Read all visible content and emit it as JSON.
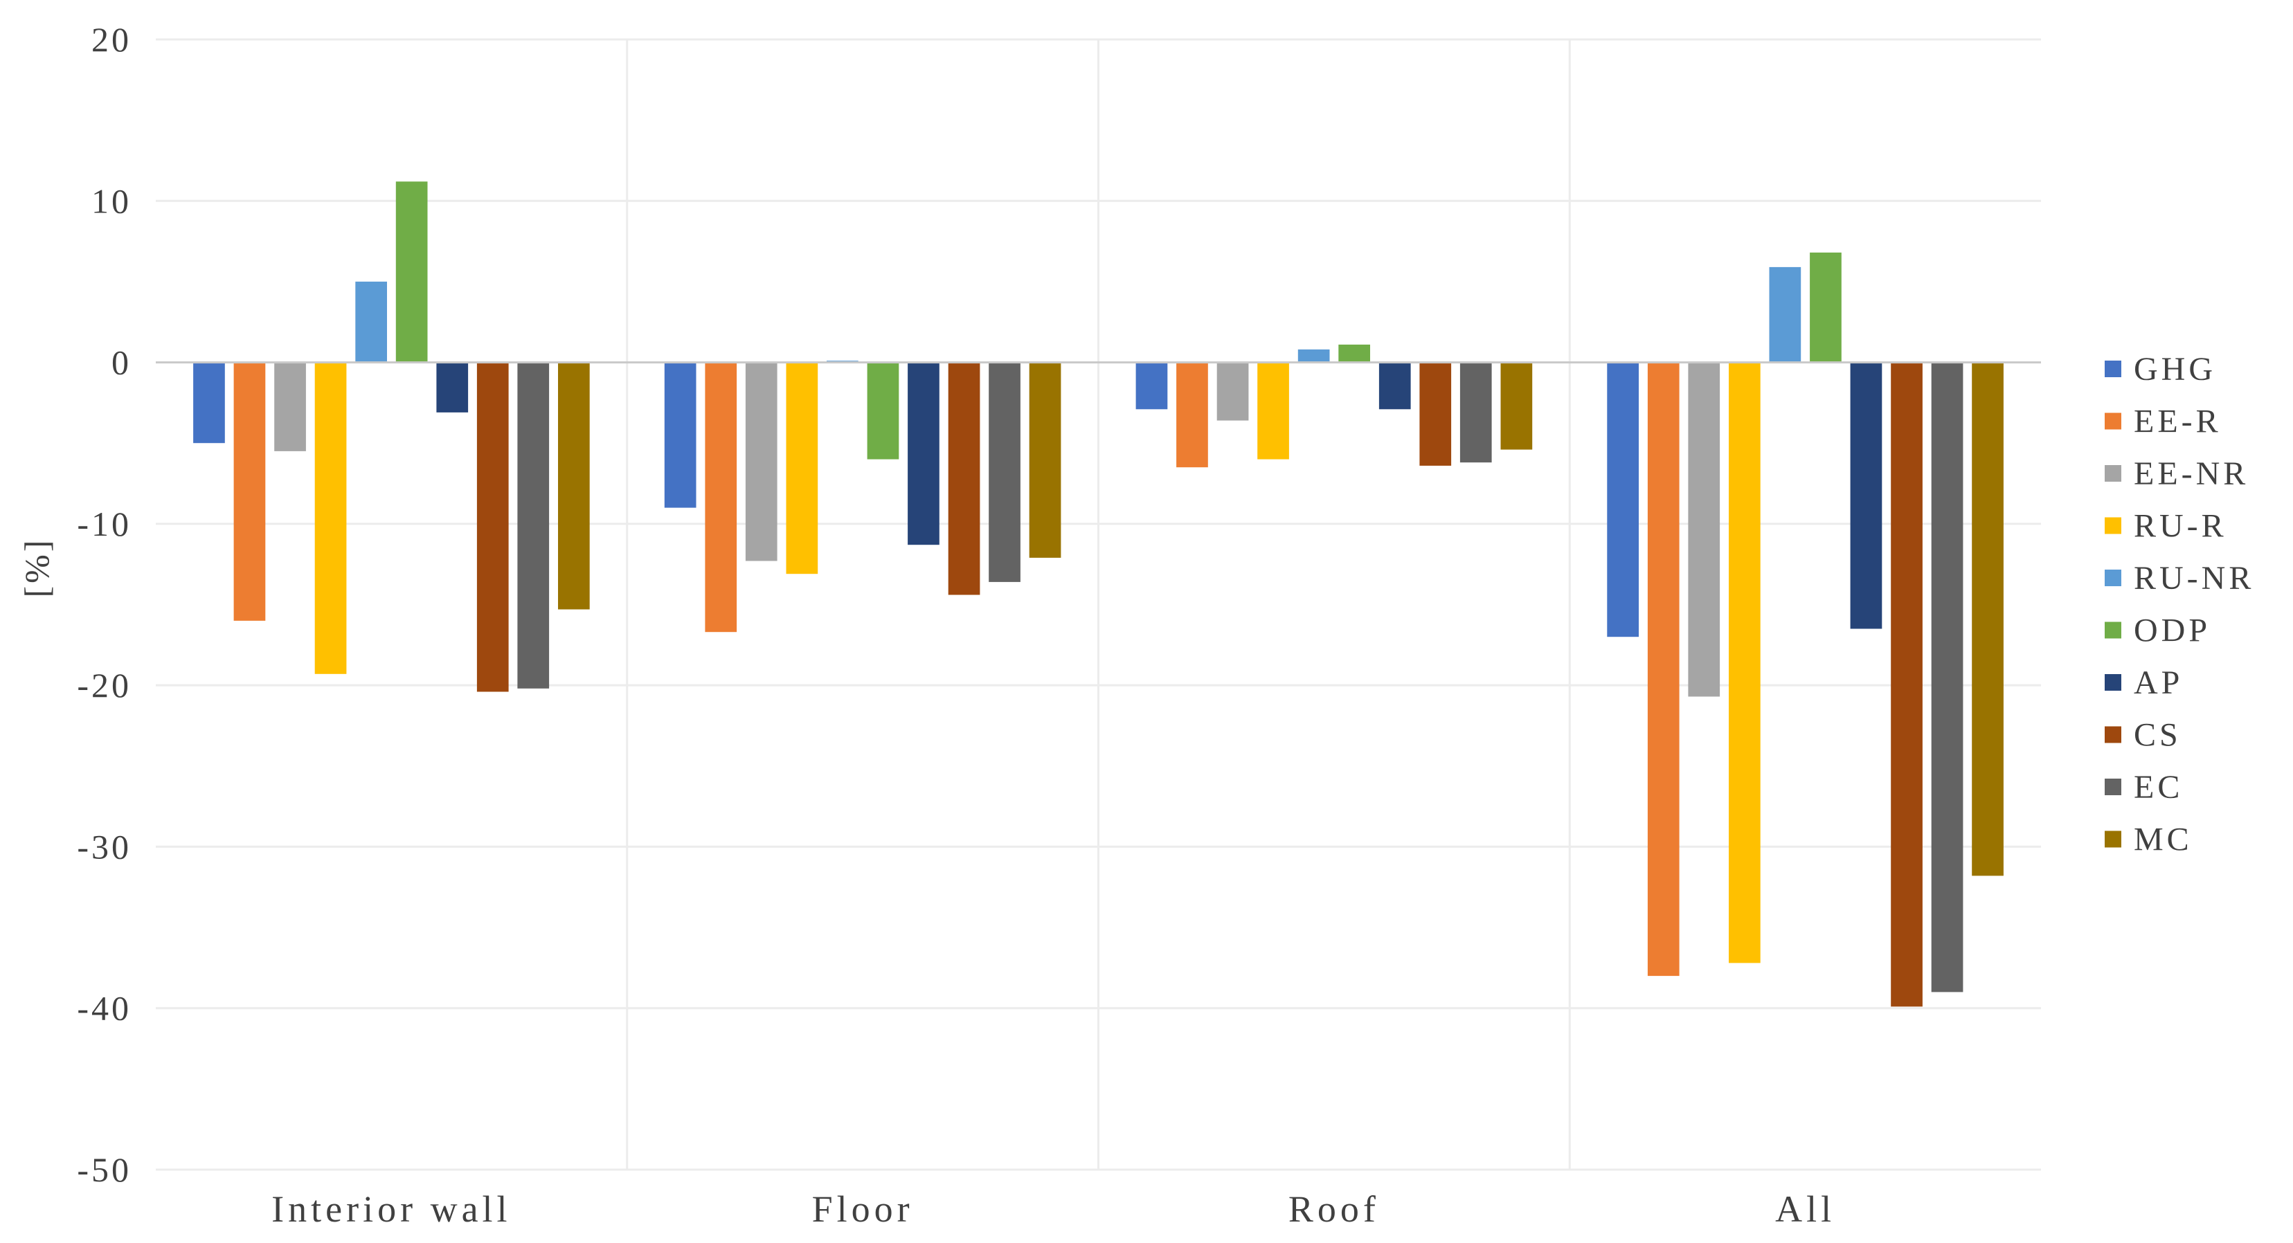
{
  "chart_data": {
    "type": "bar",
    "categories": [
      "Interior wall",
      "Floor",
      "Roof",
      "All"
    ],
    "ylabel": "[%]",
    "ylim": [
      -50,
      20
    ],
    "yticks": [
      20,
      10,
      0,
      -10,
      -20,
      -30,
      -40,
      -50
    ],
    "grid": true,
    "legend_position": "right",
    "series": [
      {
        "name": "GHG",
        "color": "#4472C4",
        "values": [
          -5.0,
          -9.0,
          -2.9,
          -17.0
        ]
      },
      {
        "name": "EE-R",
        "color": "#ED7D31",
        "values": [
          -16.0,
          -16.7,
          -6.5,
          -38.0
        ]
      },
      {
        "name": "EE-NR",
        "color": "#A5A5A5",
        "values": [
          -5.5,
          -12.3,
          -3.6,
          -20.7
        ]
      },
      {
        "name": "RU-R",
        "color": "#FFC000",
        "values": [
          -19.3,
          -13.1,
          -6.0,
          -37.2
        ]
      },
      {
        "name": "RU-NR",
        "color": "#5B9BD5",
        "values": [
          5.0,
          0.1,
          0.8,
          5.9
        ]
      },
      {
        "name": "ODP",
        "color": "#70AD47",
        "values": [
          11.2,
          -6.0,
          1.1,
          6.8
        ]
      },
      {
        "name": "AP",
        "color": "#264478",
        "values": [
          -3.1,
          -11.3,
          -2.9,
          -16.5
        ]
      },
      {
        "name": "CS",
        "color": "#9E480E",
        "values": [
          -20.4,
          -14.4,
          -6.4,
          -39.9
        ]
      },
      {
        "name": "EC",
        "color": "#636363",
        "values": [
          -20.2,
          -13.6,
          -6.2,
          -39.0
        ]
      },
      {
        "name": "MC",
        "color": "#997300",
        "values": [
          -15.3,
          -12.1,
          -5.4,
          -31.8
        ]
      }
    ]
  }
}
